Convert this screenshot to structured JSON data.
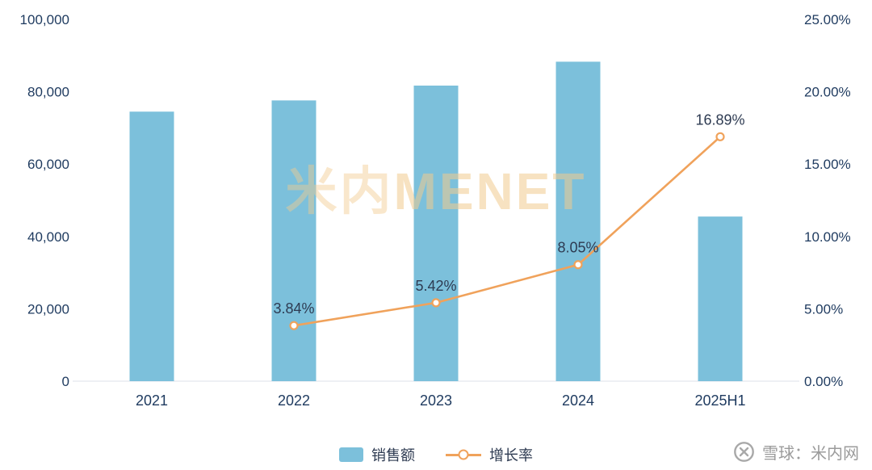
{
  "chart_data": {
    "type": "bar",
    "subtype": "combo-bar-line-dual-axis",
    "categories": [
      "2021",
      "2022",
      "2023",
      "2024",
      "2025H1"
    ],
    "series": [
      {
        "name": "销售额",
        "type": "bar",
        "axis": "left",
        "values": [
          74500,
          77600,
          81700,
          88300,
          45500
        ]
      },
      {
        "name": "增长率",
        "type": "line",
        "axis": "right",
        "values": [
          null,
          3.84,
          5.42,
          8.05,
          16.89
        ],
        "labels": [
          null,
          "3.84%",
          "5.42%",
          "8.05%",
          "16.89%"
        ]
      }
    ],
    "title": "",
    "xlabel": "",
    "ylabel": "",
    "left_axis": {
      "min": 0,
      "max": 100000,
      "step": 20000,
      "tick_labels": [
        "0",
        "20,000",
        "40,000",
        "60,000",
        "80,000",
        "100,000"
      ]
    },
    "right_axis": {
      "min": 0,
      "max": 25,
      "step": 5,
      "tick_labels": [
        "0.00%",
        "5.00%",
        "10.00%",
        "15.00%",
        "20.00%",
        "25.00%"
      ]
    },
    "grid": false,
    "legend_position": "bottom"
  },
  "legend": {
    "bar_label": "销售额",
    "line_label": "增长率"
  },
  "watermark": {
    "part1": "米内",
    "part2": "MENET"
  },
  "footer": {
    "source_text": "雪球：米内网"
  },
  "colors": {
    "bar": "#7CC0DB",
    "line": "#F0A25B",
    "axis_text": "#1E3A5F",
    "label_text": "#2E3B52",
    "axis_line": "#DDE2E8",
    "watermark": "#F2CC8F",
    "footer_text": "#9B9B9B",
    "footer_icon": "#A8A8A8"
  }
}
